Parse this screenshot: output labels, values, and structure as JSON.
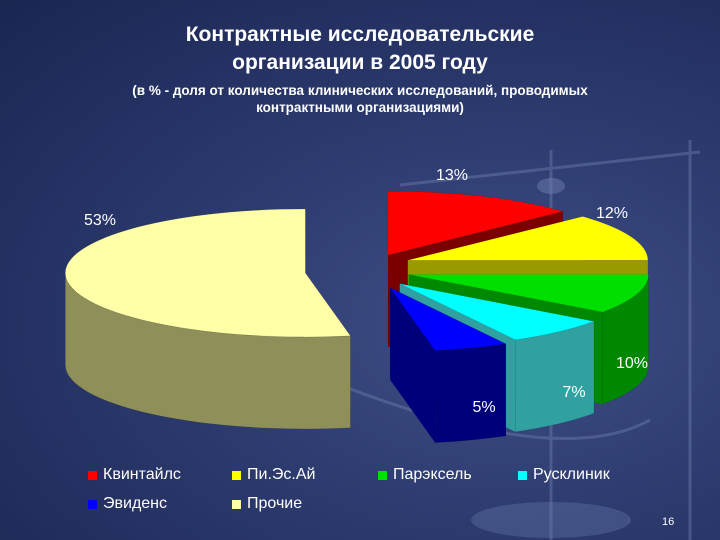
{
  "slide": {
    "title_line1": "Контрактные исследовательские",
    "title_line2": "организации в 2005 году",
    "subtitle_line1": "(в % - доля от количества клинических исследований, проводимых",
    "subtitle_line2": "контрактными организациями)",
    "page_number": "16"
  },
  "chart_data": {
    "type": "pie",
    "style": "3d-exploded",
    "title": "Контрактные исследовательские организации в 2005 году",
    "subtitle": "(в % - доля от количества клинических исследований, проводимых контрактными организациями)",
    "legend_position": "bottom",
    "data_labels": true,
    "slices": [
      {
        "name": "Квинтайлс",
        "value": 13,
        "label": "13%",
        "color": "#ff0000",
        "side_color": "#7a0000"
      },
      {
        "name": "Пи.Эс.Ай",
        "value": 12,
        "label": "12%",
        "color": "#ffff00",
        "side_color": "#9a9a00"
      },
      {
        "name": "Парэксель",
        "value": 10,
        "label": "10%",
        "color": "#00e000",
        "side_color": "#008800"
      },
      {
        "name": "Русклиник",
        "value": 7,
        "label": "7%",
        "color": "#00ffff",
        "side_color": "#30a0a0"
      },
      {
        "name": "Эвиденс",
        "value": 5,
        "label": "5%",
        "color": "#0000ff",
        "side_color": "#00007a"
      },
      {
        "name": "Прочие",
        "value": 53,
        "label": "53%",
        "color": "#ffffa8",
        "side_color": "#8f8f5a"
      }
    ]
  }
}
